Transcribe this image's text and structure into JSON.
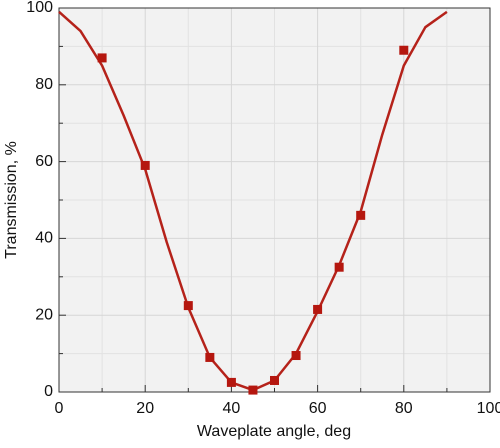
{
  "chart_data": {
    "type": "scatter",
    "xlabel": "Waveplate angle, deg",
    "ylabel": "Transmission, %",
    "xlim": [
      0,
      100
    ],
    "ylim": [
      0,
      100
    ],
    "xticks": [
      0,
      20,
      40,
      60,
      80,
      100
    ],
    "yticks": [
      0,
      20,
      40,
      60,
      80,
      100
    ],
    "xminorticks": [
      10,
      30,
      50,
      70,
      90
    ],
    "yminorticks": [
      10,
      30,
      50,
      70,
      90
    ],
    "grid": true,
    "series": [
      {
        "kind": "line",
        "color": "#b5221a",
        "x": [
          0,
          5,
          10,
          15,
          20,
          25,
          30,
          35,
          40,
          45,
          50,
          55,
          60,
          65,
          70,
          75,
          80,
          85,
          90
        ],
        "values": [
          99,
          94,
          85,
          72,
          58,
          39,
          22,
          9,
          2.5,
          0.5,
          3,
          10,
          21,
          33,
          47,
          67,
          85,
          95,
          99
        ]
      },
      {
        "kind": "marker",
        "color": "#b5170f",
        "x": [
          10,
          20,
          30,
          35,
          40,
          45,
          50,
          55,
          60,
          65,
          70,
          80
        ],
        "values": [
          87,
          59,
          22.5,
          9,
          2.5,
          0.5,
          3,
          9.5,
          21.5,
          32.5,
          46,
          89
        ]
      }
    ]
  }
}
